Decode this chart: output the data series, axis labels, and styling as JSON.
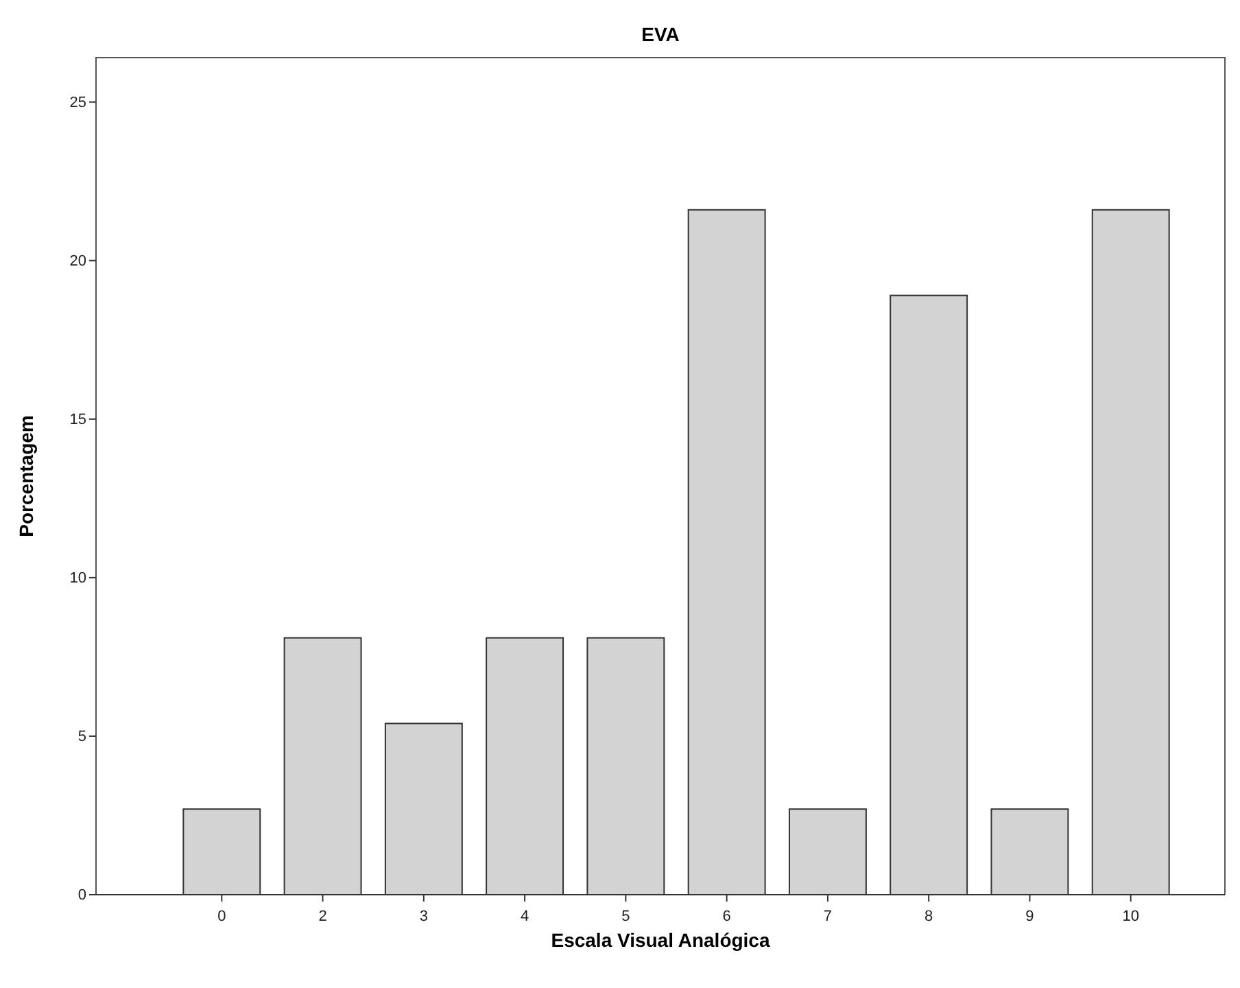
{
  "chart_data": {
    "type": "bar",
    "title": "EVA",
    "xlabel": "Escala Visual Analógica",
    "ylabel": "Porcentagem",
    "categories": [
      "0",
      "2",
      "3",
      "4",
      "5",
      "6",
      "7",
      "8",
      "9",
      "10"
    ],
    "values": [
      2.7,
      8.1,
      5.4,
      8.1,
      8.1,
      21.6,
      2.7,
      18.9,
      2.7,
      21.6
    ],
    "color": "#d3d3d3",
    "ylim": [
      0,
      26.4
    ],
    "yticks": [
      0,
      5,
      10,
      15,
      20,
      25
    ],
    "grid": false
  }
}
